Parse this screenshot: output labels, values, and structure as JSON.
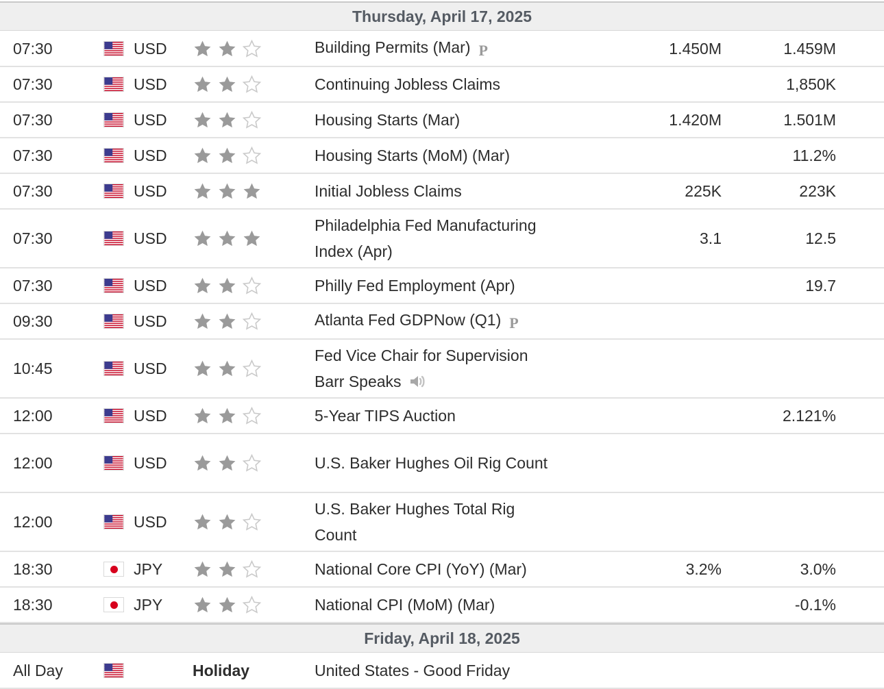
{
  "days": [
    {
      "date": "Thursday, April 17, 2025",
      "events": [
        {
          "time": "07:30",
          "country": "us",
          "currency": "USD",
          "importance": 2,
          "event": "Building Permits (Mar)",
          "icon": "preliminary-icon",
          "icon_label": "P",
          "actual": "1.450M",
          "forecast": "1.459M"
        },
        {
          "time": "07:30",
          "country": "us",
          "currency": "USD",
          "importance": 2,
          "event": "Continuing Jobless Claims",
          "icon": "",
          "actual": "",
          "forecast": "1,850K"
        },
        {
          "time": "07:30",
          "country": "us",
          "currency": "USD",
          "importance": 2,
          "event": "Housing Starts (Mar)",
          "icon": "",
          "actual": "1.420M",
          "forecast": "1.501M"
        },
        {
          "time": "07:30",
          "country": "us",
          "currency": "USD",
          "importance": 2,
          "event": "Housing Starts (MoM) (Mar)",
          "icon": "",
          "actual": "",
          "forecast": "11.2%"
        },
        {
          "time": "07:30",
          "country": "us",
          "currency": "USD",
          "importance": 3,
          "event": "Initial Jobless Claims",
          "icon": "",
          "actual": "225K",
          "forecast": "223K"
        },
        {
          "time": "07:30",
          "country": "us",
          "currency": "USD",
          "importance": 3,
          "event": "Philadelphia Fed Manufacturing Index (Apr)",
          "icon": "",
          "actual": "3.1",
          "forecast": "12.5"
        },
        {
          "time": "07:30",
          "country": "us",
          "currency": "USD",
          "importance": 2,
          "event": "Philly Fed Employment (Apr)",
          "icon": "",
          "actual": "",
          "forecast": "19.7"
        },
        {
          "time": "09:30",
          "country": "us",
          "currency": "USD",
          "importance": 2,
          "event": "Atlanta Fed GDPNow (Q1)",
          "icon": "preliminary-icon",
          "icon_label": "P",
          "actual": "",
          "forecast": ""
        },
        {
          "time": "10:45",
          "country": "us",
          "currency": "USD",
          "importance": 2,
          "event": "Fed Vice Chair for Supervision Barr Speaks",
          "icon": "speaker-icon",
          "actual": "",
          "forecast": ""
        },
        {
          "time": "12:00",
          "country": "us",
          "currency": "USD",
          "importance": 2,
          "event": "5-Year TIPS Auction",
          "icon": "",
          "actual": "",
          "forecast": "2.121%"
        },
        {
          "time": "12:00",
          "country": "us",
          "currency": "USD",
          "importance": 2,
          "event": "U.S. Baker Hughes Oil Rig Count",
          "icon": "",
          "actual": "",
          "forecast": ""
        },
        {
          "time": "12:00",
          "country": "us",
          "currency": "USD",
          "importance": 2,
          "event": "U.S. Baker Hughes Total Rig Count",
          "icon": "",
          "actual": "",
          "forecast": ""
        },
        {
          "time": "18:30",
          "country": "jp",
          "currency": "JPY",
          "importance": 2,
          "event": "National Core CPI (YoY) (Mar)",
          "icon": "",
          "actual": "3.2%",
          "forecast": "3.0%"
        },
        {
          "time": "18:30",
          "country": "jp",
          "currency": "JPY",
          "importance": 2,
          "event": "National CPI (MoM) (Mar)",
          "icon": "",
          "actual": "",
          "forecast": "-0.1%"
        }
      ]
    },
    {
      "date": "Friday, April 18, 2025",
      "events": [
        {
          "time": "All Day",
          "country": "us",
          "currency": "",
          "importance_label": "Holiday",
          "event": "United States - Good Friday",
          "icon": "",
          "actual": "",
          "forecast": ""
        }
      ]
    }
  ],
  "colors": {
    "star_filled": "#9a9a9a",
    "star_empty": "#c9c9c9",
    "header_bg": "#efefef",
    "row_border": "#e2e2e2",
    "us_red": "#c8102e",
    "us_blue": "#3c3b8e",
    "jp_red": "#d7001d"
  }
}
